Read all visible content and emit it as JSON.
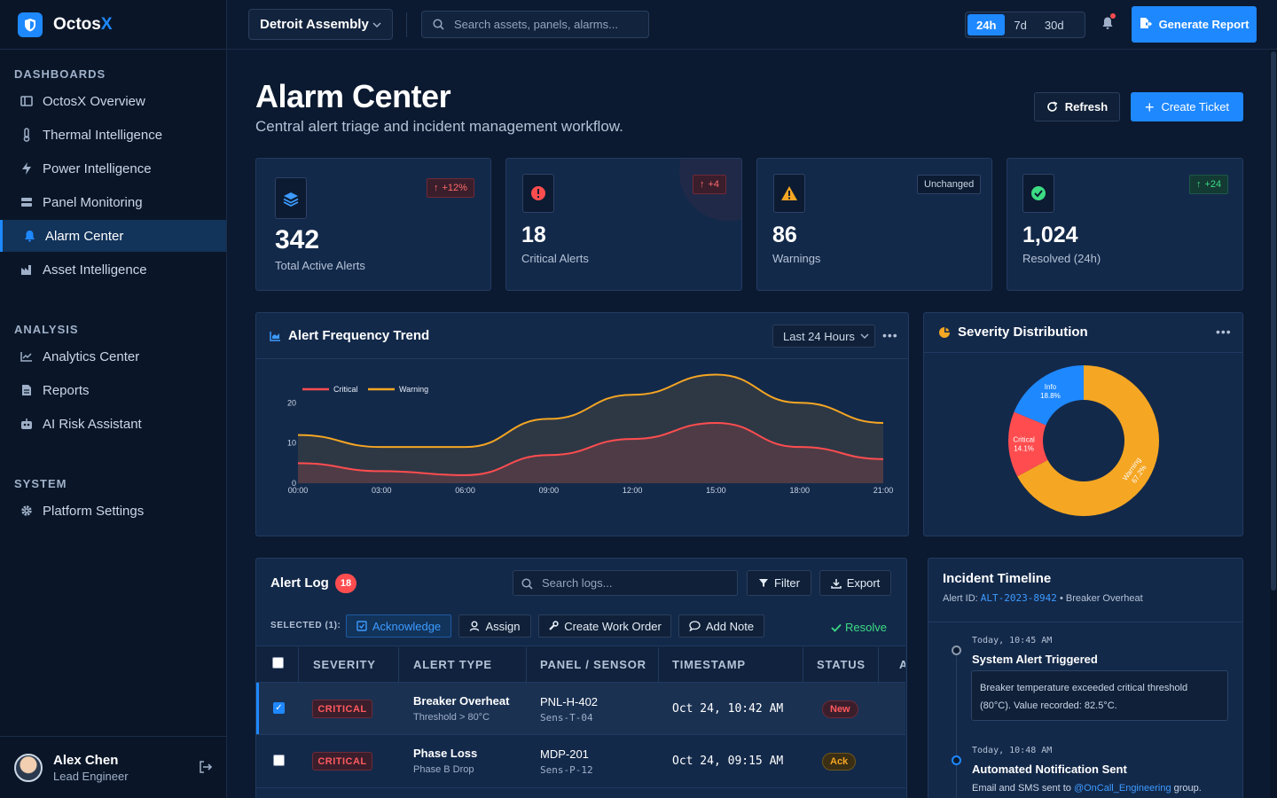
{
  "app": {
    "name_main": "Octos",
    "name_accent": "X"
  },
  "sidebar": {
    "sections": [
      {
        "title": "DASHBOARDS"
      },
      {
        "title": "ANALYSIS"
      },
      {
        "title": "SYSTEM"
      }
    ],
    "items": [
      {
        "label": "OctosX Overview",
        "icon": "layout-icon"
      },
      {
        "label": "Thermal Intelligence",
        "icon": "thermometer-icon"
      },
      {
        "label": "Power Intelligence",
        "icon": "bolt-icon"
      },
      {
        "label": "Panel Monitoring",
        "icon": "server-icon"
      },
      {
        "label": "Alarm Center",
        "icon": "bell-icon",
        "active": true
      },
      {
        "label": "Asset Intelligence",
        "icon": "factory-icon"
      },
      {
        "label": "Analytics Center",
        "icon": "line-chart-icon"
      },
      {
        "label": "Reports",
        "icon": "file-icon"
      },
      {
        "label": "AI Risk Assistant",
        "icon": "robot-icon"
      },
      {
        "label": "Platform Settings",
        "icon": "gear-icon"
      }
    ],
    "user": {
      "name": "Alex Chen",
      "role": "Lead Engineer"
    }
  },
  "topbar": {
    "site": "Detroit Assembly",
    "search_placeholder": "Search assets, panels, alarms...",
    "ranges": [
      "24h",
      "7d",
      "30d"
    ],
    "active_range": "24h",
    "generate_label": "Generate Report"
  },
  "header": {
    "title": "Alarm Center",
    "subtitle": "Central alert triage and incident management workflow.",
    "refresh_label": "Refresh",
    "create_label": "Create Ticket"
  },
  "kpis": [
    {
      "value": "342",
      "label": "Total Active Alerts",
      "delta": "+12%",
      "tone": "red",
      "icon": "layers-icon"
    },
    {
      "value": "18",
      "label": "Critical Alerts",
      "delta": "+4",
      "tone": "red",
      "icon": "alert-circle-icon"
    },
    {
      "value": "86",
      "label": "Warnings",
      "delta": "Unchanged",
      "tone": "neutral",
      "icon": "warning-triangle-icon"
    },
    {
      "value": "1,024",
      "label": "Resolved (24h)",
      "delta": "+24",
      "tone": "green",
      "icon": "check-circle-icon"
    }
  ],
  "trend": {
    "title": "Alert Frequency Trend",
    "range_select": "Last 24 Hours"
  },
  "severity": {
    "title": "Severity Distribution"
  },
  "chart_data": [
    {
      "type": "area",
      "title": "Alert Frequency Trend",
      "x": [
        "00:00",
        "03:00",
        "06:00",
        "09:00",
        "12:00",
        "15:00",
        "18:00",
        "21:00"
      ],
      "yticks": [
        "0",
        "10",
        "20"
      ],
      "ylim": [
        0,
        28
      ],
      "legend": "top-left",
      "series": [
        {
          "name": "Critical",
          "color": "#ff4d4f",
          "values": [
            5,
            3,
            2,
            7,
            11,
            15,
            9,
            6
          ]
        },
        {
          "name": "Warning",
          "color": "#f5a623",
          "values": [
            12,
            9,
            9,
            16,
            22,
            27,
            20,
            15
          ]
        }
      ]
    },
    {
      "type": "pie",
      "title": "Severity Distribution",
      "slices": [
        {
          "name": "Info",
          "label": "18.8%",
          "value": 18.8,
          "color": "#1e88ff"
        },
        {
          "name": "Critical",
          "label": "14.1%",
          "value": 14.1,
          "color": "#ff4d4f"
        },
        {
          "name": "Warning",
          "label": "67.2%",
          "value": 67.2,
          "color": "#f5a623"
        }
      ]
    }
  ],
  "alert_log": {
    "title": "Alert Log",
    "count": "18",
    "search_placeholder": "Search logs...",
    "filter_label": "Filter",
    "export_label": "Export",
    "selected_label": "SELECTED (1):",
    "bulk": {
      "ack": "Acknowledge",
      "assign": "Assign",
      "work_order": "Create Work Order",
      "note": "Add Note",
      "resolve": "Resolve"
    },
    "columns": [
      "SEVERITY",
      "ALERT TYPE",
      "PANEL / SENSOR",
      "TIMESTAMP",
      "STATUS",
      "A"
    ],
    "rows": [
      {
        "checked": true,
        "severity": "CRITICAL",
        "type": "Breaker Overheat",
        "type_sub": "Threshold > 80°C",
        "panel": "PNL-H-402",
        "sensor": "Sens-T-04",
        "timestamp": "Oct 24, 10:42 AM",
        "status": "New"
      },
      {
        "checked": false,
        "severity": "CRITICAL",
        "type": "Phase Loss",
        "type_sub": "Phase B Drop",
        "panel": "MDP-201",
        "sensor": "Sens-P-12",
        "timestamp": "Oct 24, 09:15 AM",
        "status": "Ack"
      }
    ]
  },
  "timeline": {
    "title": "Incident Timeline",
    "prefix": "Alert ID: ",
    "alert_id": "ALT-2023-8942",
    "suffix": " • Breaker Overheat",
    "events": [
      {
        "time": "Today, 10:45 AM",
        "title": "System Alert Triggered",
        "detail": "Breaker temperature exceeded critical threshold (80°C). Value recorded: 82.5°C."
      },
      {
        "time": "Today, 10:48 AM",
        "title": "Automated Notification Sent",
        "detail_pre": "Email and SMS sent to ",
        "mention": "@OnCall_Engineering",
        "detail_post": " group."
      }
    ]
  }
}
